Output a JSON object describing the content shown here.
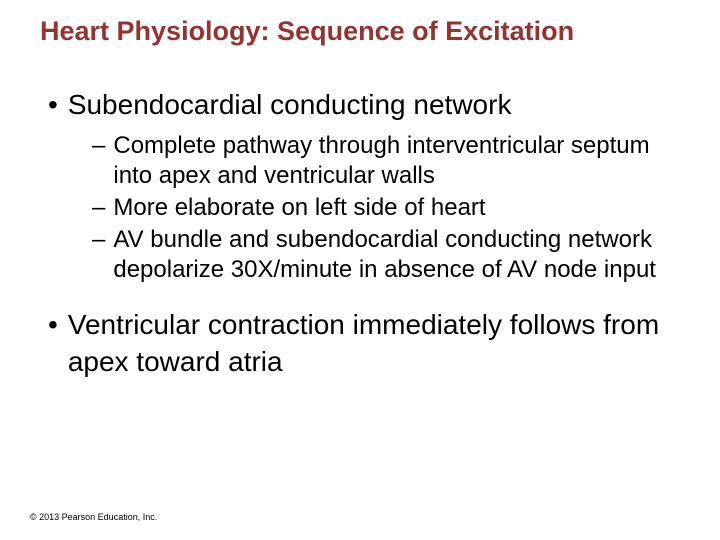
{
  "title": "Heart Physiology: Sequence of Excitation",
  "bullets": {
    "item1": {
      "text": "Subendocardial conducting network",
      "sub": {
        "s1": "Complete pathway through interventricular septum into apex and ventricular walls",
        "s2": "More elaborate on left side of heart",
        "s3": "AV bundle and subendocardial conducting network depolarize 30X/minute in absence of AV node input"
      }
    },
    "item2": {
      "text": "Ventricular contraction immediately follows from apex toward atria"
    }
  },
  "copyright": "© 2013 Pearson Education, Inc.",
  "colors": {
    "title_color": "#933431",
    "text_color": "#000000",
    "background": "#ffffff"
  },
  "typography": {
    "title_fontsize": 27,
    "level1_fontsize": 28,
    "level2_fontsize": 24,
    "copyright_fontsize": 9,
    "font_family": "Arial"
  },
  "markers": {
    "level1": "•",
    "level2": "–"
  }
}
